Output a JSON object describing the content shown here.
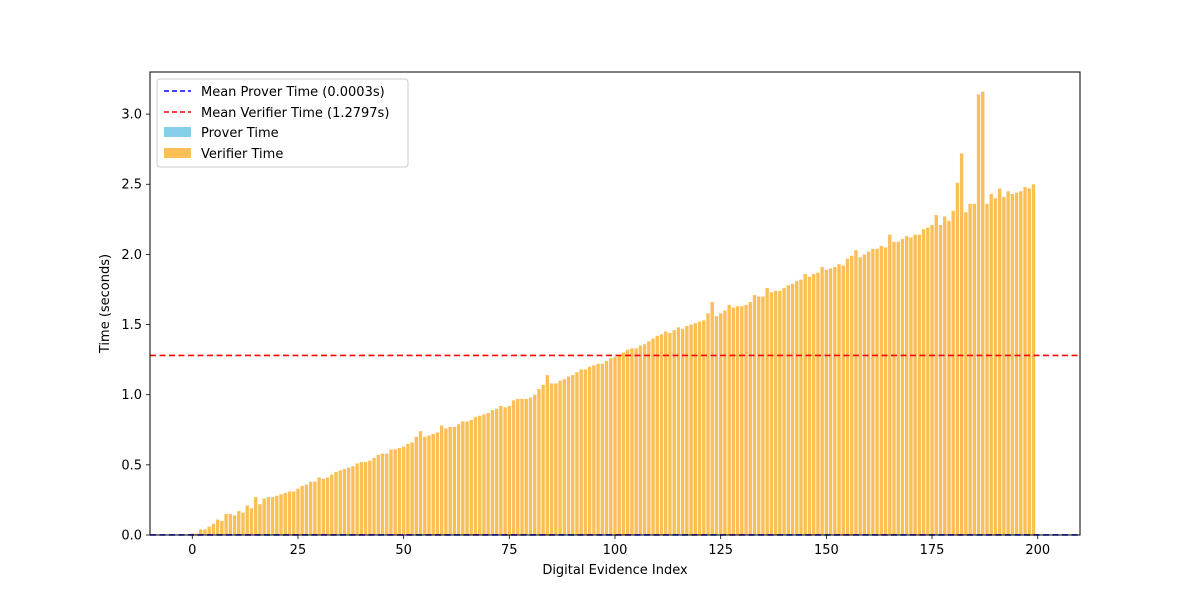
{
  "chart_data": {
    "type": "bar",
    "xlabel": "Digital Evidence Index",
    "ylabel": "Time (seconds)",
    "xlim": [
      -10,
      210
    ],
    "ylim": [
      0,
      3.3
    ],
    "xticks": [
      0,
      25,
      50,
      75,
      100,
      125,
      150,
      175,
      200
    ],
    "yticks": [
      0.0,
      0.5,
      1.0,
      1.5,
      2.0,
      2.5,
      3.0
    ],
    "grid": false,
    "legend_position": "top-left",
    "series": [
      {
        "name": "Prover Time",
        "kind": "bar",
        "color": "#87ceeb",
        "values": [
          0.0003,
          0.0003,
          0.0003,
          0.0003,
          0.0003,
          0.0003,
          0.0003,
          0.0003,
          0.0003,
          0.0003,
          0.0003,
          0.0003,
          0.0003,
          0.0003,
          0.0003,
          0.0003,
          0.0003,
          0.0003,
          0.0003,
          0.0003,
          0.0003,
          0.0003,
          0.0003,
          0.0003,
          0.0003,
          0.0003,
          0.0003,
          0.0003,
          0.0003,
          0.0003,
          0.0003,
          0.0003,
          0.0003,
          0.0003,
          0.0003,
          0.0003,
          0.0003,
          0.0003,
          0.0003,
          0.0003,
          0.0003,
          0.0003,
          0.0003,
          0.0003,
          0.0003,
          0.0003,
          0.0003,
          0.0003,
          0.0003,
          0.0003,
          0.0003,
          0.0003,
          0.0003,
          0.0003,
          0.0003,
          0.0003,
          0.0003,
          0.0003,
          0.0003,
          0.0003,
          0.0003,
          0.0003,
          0.0003,
          0.0003,
          0.0003,
          0.0003,
          0.0003,
          0.0003,
          0.0003,
          0.0003,
          0.0003,
          0.0003,
          0.0003,
          0.0003,
          0.0003,
          0.0003,
          0.0003,
          0.0003,
          0.0003,
          0.0003,
          0.0003,
          0.0003,
          0.0003,
          0.0003,
          0.0003,
          0.0003,
          0.0003,
          0.0003,
          0.0003,
          0.0003,
          0.0003,
          0.0003,
          0.0003,
          0.0003,
          0.0003,
          0.0003,
          0.0003,
          0.0003,
          0.0003,
          0.0003,
          0.0003,
          0.0003,
          0.0003,
          0.0003,
          0.0003,
          0.0003,
          0.0003,
          0.0003,
          0.0003,
          0.0003,
          0.0003,
          0.0003,
          0.0003,
          0.0003,
          0.0003,
          0.0003,
          0.0003,
          0.0003,
          0.0003,
          0.0003,
          0.0003,
          0.0003,
          0.0003,
          0.0003,
          0.0003,
          0.0003,
          0.0003,
          0.0003,
          0.0003,
          0.0003,
          0.0003,
          0.0003,
          0.0003,
          0.0003,
          0.0003,
          0.0003,
          0.0003,
          0.0003,
          0.0003,
          0.0003,
          0.0003,
          0.0003,
          0.0003,
          0.0003,
          0.0003,
          0.0003,
          0.0003,
          0.0003,
          0.0003,
          0.0003,
          0.0003,
          0.0003,
          0.0003,
          0.0003,
          0.0003,
          0.0003,
          0.0003,
          0.0003,
          0.0003,
          0.0003,
          0.0003,
          0.0003,
          0.0003,
          0.0003,
          0.0003,
          0.0003,
          0.0003,
          0.0003,
          0.0003,
          0.0003,
          0.0003,
          0.0003,
          0.0003,
          0.0003,
          0.0003,
          0.0003,
          0.0003,
          0.0003,
          0.0003,
          0.0003,
          0.0003,
          0.0003,
          0.0003,
          0.0003,
          0.0003,
          0.0003,
          0.0003,
          0.0003,
          0.0003,
          0.0003,
          0.0003,
          0.0003,
          0.0003,
          0.0003,
          0.0003,
          0.0003,
          0.0003,
          0.0003,
          0.0003,
          0.0003,
          0.0003,
          0.0003,
          0.0003,
          0.0003
        ]
      },
      {
        "name": "Verifier Time",
        "kind": "bar",
        "color": "#fbbf55",
        "values": [
          0.01,
          0.01,
          0.04,
          0.04,
          0.06,
          0.08,
          0.11,
          0.1,
          0.15,
          0.15,
          0.14,
          0.17,
          0.16,
          0.21,
          0.19,
          0.27,
          0.22,
          0.26,
          0.27,
          0.27,
          0.28,
          0.29,
          0.3,
          0.31,
          0.31,
          0.33,
          0.35,
          0.36,
          0.38,
          0.38,
          0.41,
          0.4,
          0.41,
          0.43,
          0.45,
          0.46,
          0.47,
          0.48,
          0.49,
          0.51,
          0.52,
          0.52,
          0.53,
          0.55,
          0.57,
          0.58,
          0.58,
          0.61,
          0.61,
          0.62,
          0.63,
          0.65,
          0.66,
          0.7,
          0.74,
          0.7,
          0.71,
          0.72,
          0.73,
          0.78,
          0.76,
          0.77,
          0.77,
          0.79,
          0.81,
          0.81,
          0.82,
          0.84,
          0.85,
          0.86,
          0.87,
          0.89,
          0.9,
          0.92,
          0.91,
          0.92,
          0.96,
          0.97,
          0.97,
          0.97,
          0.98,
          1.0,
          1.04,
          1.07,
          1.14,
          1.08,
          1.08,
          1.1,
          1.11,
          1.13,
          1.14,
          1.16,
          1.18,
          1.18,
          1.2,
          1.21,
          1.22,
          1.22,
          1.24,
          1.26,
          1.27,
          1.28,
          1.3,
          1.32,
          1.33,
          1.33,
          1.35,
          1.36,
          1.38,
          1.4,
          1.42,
          1.43,
          1.45,
          1.44,
          1.46,
          1.48,
          1.47,
          1.49,
          1.5,
          1.51,
          1.52,
          1.53,
          1.58,
          1.66,
          1.56,
          1.58,
          1.6,
          1.64,
          1.62,
          1.63,
          1.63,
          1.64,
          1.66,
          1.71,
          1.7,
          1.7,
          1.76,
          1.73,
          1.74,
          1.74,
          1.76,
          1.78,
          1.79,
          1.81,
          1.82,
          1.86,
          1.84,
          1.86,
          1.87,
          1.91,
          1.89,
          1.9,
          1.91,
          1.93,
          1.92,
          1.97,
          1.99,
          2.03,
          1.98,
          2.0,
          2.02,
          2.04,
          2.04,
          2.06,
          2.05,
          2.14,
          2.09,
          2.09,
          2.11,
          2.13,
          2.12,
          2.14,
          2.14,
          2.18,
          2.19,
          2.21,
          2.28,
          2.21,
          2.27,
          2.24,
          2.31,
          2.51,
          2.72,
          2.3,
          2.36,
          2.36,
          3.14,
          3.16,
          2.36,
          2.43,
          2.4,
          2.47,
          2.41,
          2.45,
          2.43,
          2.44,
          2.45,
          2.48,
          2.47,
          2.5
        ]
      }
    ],
    "reference_lines": [
      {
        "name": "Mean Prover Time (0.0003s)",
        "y": 0.0003,
        "color": "#0000ff",
        "style": "dashed"
      },
      {
        "name": "Mean Verifier Time (1.2797s)",
        "y": 1.2797,
        "color": "#ff0000",
        "style": "dashed"
      }
    ]
  }
}
